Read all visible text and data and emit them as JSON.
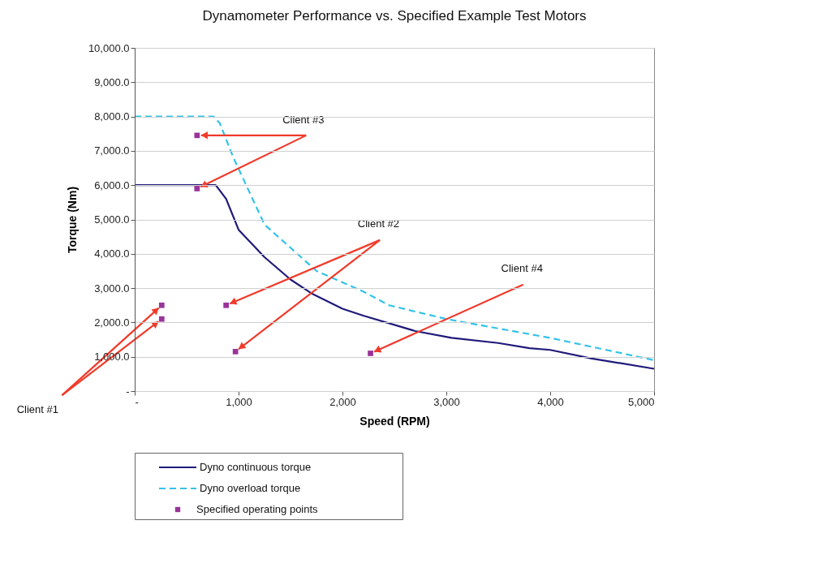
{
  "chart_data": {
    "type": "line",
    "title": "Dynamometer Performance vs. Specified Example Test Motors",
    "xlabel": "Speed (RPM)",
    "ylabel": "Torque (Nm)",
    "xlim": [
      0,
      5000
    ],
    "ylim": [
      0,
      10000
    ],
    "xticks": [
      {
        "value": 0,
        "label": "-"
      },
      {
        "value": 1000,
        "label": "1,000"
      },
      {
        "value": 2000,
        "label": "2,000"
      },
      {
        "value": 3000,
        "label": "3,000"
      },
      {
        "value": 4000,
        "label": "4,000"
      },
      {
        "value": 5000,
        "label": "5,000"
      }
    ],
    "yticks": [
      {
        "value": 0,
        "label": "-"
      },
      {
        "value": 1000,
        "label": "1,000.0"
      },
      {
        "value": 2000,
        "label": "2,000.0"
      },
      {
        "value": 3000,
        "label": "3,000.0"
      },
      {
        "value": 4000,
        "label": "4,000.0"
      },
      {
        "value": 5000,
        "label": "5,000.0"
      },
      {
        "value": 6000,
        "label": "6,000.0"
      },
      {
        "value": 7000,
        "label": "7,000.0"
      },
      {
        "value": 8000,
        "label": "8,000.0"
      },
      {
        "value": 9000,
        "label": "9,000.0"
      },
      {
        "value": 10000,
        "label": "10,000.0"
      }
    ],
    "grid": "y",
    "legend": "bottom left",
    "series": [
      {
        "name": "Dyno continuous torque",
        "color": "#1f1a7a",
        "line_style": "solid",
        "x": [
          0,
          780,
          880,
          1000,
          1250,
          1500,
          1700,
          2000,
          2200,
          2700,
          3050,
          3500,
          3800,
          4000,
          4400,
          5000
        ],
        "values": [
          6000,
          6000,
          5600,
          4700,
          3900,
          3250,
          2850,
          2400,
          2200,
          1750,
          1550,
          1400,
          1250,
          1200,
          950,
          650
        ]
      },
      {
        "name": "Dyno overload torque",
        "color": "#33c3e8",
        "line_style": "dashed",
        "x": [
          0,
          760,
          820,
          950,
          1250,
          1750,
          2200,
          2450,
          3000,
          4000,
          5000
        ],
        "values": [
          8000,
          8000,
          7800,
          6800,
          4850,
          3500,
          2900,
          2500,
          2100,
          1550,
          900
        ]
      },
      {
        "name": "Specified operating points",
        "type": "scatter",
        "color": "#993399",
        "marker": "square",
        "x": [
          260,
          260,
          600,
          600,
          880,
          970,
          2270
        ],
        "values": [
          2500,
          2100,
          7450,
          5900,
          2500,
          1150,
          1100
        ]
      }
    ],
    "annotations": [
      {
        "text": "Client #1",
        "x": 260,
        "y": 2500
      },
      {
        "text": "Client #3",
        "x": 600,
        "y": 7450
      },
      {
        "text": "Client #2",
        "x": 880,
        "y": 2500
      },
      {
        "text": "Client #4",
        "x": 2270,
        "y": 1100
      }
    ]
  }
}
